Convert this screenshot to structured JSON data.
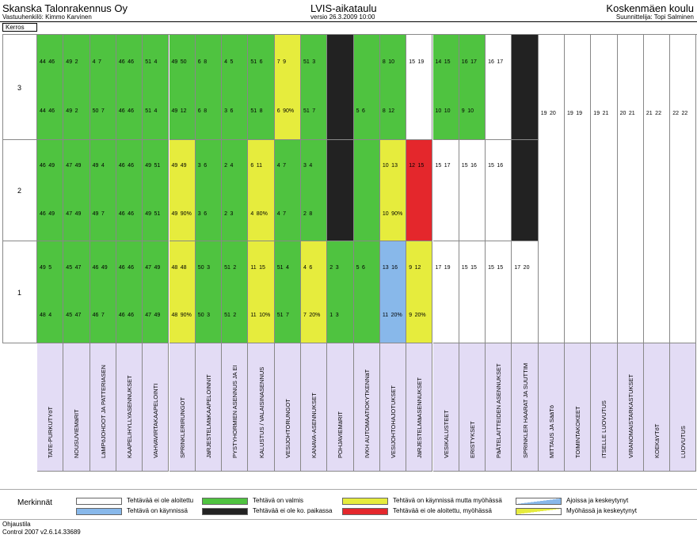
{
  "header": {
    "company": "Skanska Talonrakennus Oy",
    "responsible": "Vastuuhenkilö: Kimmo Karvinen",
    "doc_title": "LVIS-aikataulu",
    "version": "versio 26.3.2009 10:00",
    "project": "Koskenmäen koulu",
    "designer": "Suunnittelija: Topi Salminen",
    "floor_header": "Kerros"
  },
  "floors": [
    "3",
    "2",
    "1"
  ],
  "colors": {
    "white": "#ffffff",
    "green": "#4fc340",
    "yellow": "#e6ec3d",
    "black": "#222222",
    "red": "#e4272c",
    "blue": "#88b8ea",
    "task_bg": "#e3dcf5"
  },
  "tasks": [
    "TATE-PURKUTYöT",
    "NOUSUVIEMäRIT",
    "LäMPöJOHDOT JA PATTERIASEN",
    "KAAPELIHYLLYASENNUKSET",
    "VAHVAVIRTAKAAPELOINTI",
    "SPRINKLERIRUNGOT",
    "JäRJESTELMäKAAPELOINNIT",
    "PYSTYHORMIEN ASENNUS JA EI",
    "KALUSTUS / VALAISINASENNUS",
    "VESIJOHTORUNGOT",
    "KANAVA-ASENNUKSET",
    "POHJAVIEMäRIT",
    "IVKH AUTOMAATIOKYTKENNäT",
    "VESIJOHTOHAJOTUKSET",
    "JäRJESTELMäASENNUKSET",
    "VESIKALUSTEET",
    "ERISTYKSET",
    "PäÄTELAITTEIDEN ASENNUKSET",
    "SPRINKLER HAARAT JA SUUTTIM",
    "MITTAUS JA SääTö",
    "TOIMINTAKOKEET",
    "ITSELLE LUOVUTUS",
    "VIRANOMAISTARKASTUKSET",
    "KOEKäYTöT",
    "LUOVUTUS"
  ],
  "floor3": [
    {
      "c": "green",
      "t": "44  46",
      "b": "44  46"
    },
    {
      "c": "green",
      "t": "49   2",
      "b": "49   2"
    },
    {
      "c": "green",
      "t": "4    7",
      "b": "50   7"
    },
    {
      "c": "green",
      "t": "46  46",
      "b": "46  46"
    },
    {
      "c": "green",
      "t": "51   4",
      "b": "51   4"
    },
    {
      "c": "green",
      "t": "49  50",
      "b": "49  12"
    },
    {
      "c": "green",
      "t": "6    8",
      "b": "6    8"
    },
    {
      "c": "green",
      "t": "4    5",
      "b": "3    6"
    },
    {
      "c": "green",
      "t": "51   6",
      "b": "51   8"
    },
    {
      "c": "yellow",
      "t": "7    9",
      "b": "6   90%"
    },
    {
      "c": "green",
      "t": "51   3",
      "b": "51   7"
    },
    {
      "c": "black",
      "t": "",
      "b": ""
    },
    {
      "c": "green",
      "t": "",
      "b": "5    6"
    },
    {
      "c": "green",
      "t": "8   10",
      "b": "8   12"
    },
    {
      "c": "white",
      "t": "15  19",
      "b": ""
    },
    {
      "c": "green",
      "t": "14  15",
      "b": "10  10"
    },
    {
      "c": "green",
      "t": "16  17",
      "b": "9   10"
    },
    {
      "c": "white",
      "t": "16  17",
      "b": ""
    },
    {
      "c": "black",
      "t": "",
      "b": ""
    }
  ],
  "floor3_tail": [
    "19  20",
    "19  19",
    "19  21",
    "20  21",
    "21  22",
    "22  22"
  ],
  "floor2": [
    {
      "c": "green",
      "t": "46  49",
      "b": "46  49"
    },
    {
      "c": "green",
      "t": "47  49",
      "b": "47  49"
    },
    {
      "c": "green",
      "t": "49   4",
      "b": "49   7"
    },
    {
      "c": "green",
      "t": "46  46",
      "b": "46  46"
    },
    {
      "c": "green",
      "t": "49  51",
      "b": "49  51"
    },
    {
      "c": "yellow",
      "t": "49  49",
      "b": "49  90%"
    },
    {
      "c": "green",
      "t": "3    6",
      "b": "3    6"
    },
    {
      "c": "green",
      "t": "2    4",
      "b": "2    3"
    },
    {
      "c": "yellow",
      "t": "6   11",
      "b": "4   80%"
    },
    {
      "c": "green",
      "t": "4    7",
      "b": "4    7"
    },
    {
      "c": "green",
      "t": "3    4",
      "b": "2    8"
    },
    {
      "c": "black",
      "t": "",
      "b": ""
    },
    {
      "c": "green",
      "t": "",
      "b": ""
    },
    {
      "c": "yellow",
      "t": "10  13",
      "b": "10  90%"
    },
    {
      "c": "red",
      "t": "12  15",
      "b": ""
    },
    {
      "c": "white",
      "t": "15  17",
      "b": ""
    },
    {
      "c": "white",
      "t": "15  16",
      "b": ""
    },
    {
      "c": "white",
      "t": "15  16",
      "b": ""
    },
    {
      "c": "black",
      "t": "",
      "b": ""
    }
  ],
  "floor1": [
    {
      "c": "green",
      "t": "49   5",
      "b": "48   4"
    },
    {
      "c": "green",
      "t": "45  47",
      "b": "45  47"
    },
    {
      "c": "green",
      "t": "46  49",
      "b": "46   7"
    },
    {
      "c": "green",
      "t": "46  46",
      "b": "46  46"
    },
    {
      "c": "green",
      "t": "47  49",
      "b": "47  49"
    },
    {
      "c": "yellow",
      "t": "48  48",
      "b": "48  90%"
    },
    {
      "c": "green",
      "t": "50   3",
      "b": "50   3"
    },
    {
      "c": "green",
      "t": "51   2",
      "b": "51   2"
    },
    {
      "c": "yellow",
      "t": "11  15",
      "b": "11  10%"
    },
    {
      "c": "green",
      "t": "51   4",
      "b": "51   7"
    },
    {
      "c": "yellow",
      "t": "4    6",
      "b": "7   20%"
    },
    {
      "c": "green",
      "t": "2    3",
      "b": "1    3"
    },
    {
      "c": "green",
      "t": "5    6",
      "b": ""
    },
    {
      "c": "blue",
      "t": "13  16",
      "b": "11  20%"
    },
    {
      "c": "yellow",
      "t": "9   12",
      "b": "9   20%"
    },
    {
      "c": "white",
      "t": "17  19",
      "b": ""
    },
    {
      "c": "white",
      "t": "15  15",
      "b": ""
    },
    {
      "c": "white",
      "t": "15  15",
      "b": ""
    },
    {
      "c": "white",
      "t": "17  20",
      "b": ""
    }
  ],
  "legend": {
    "title": "Merkinnät",
    "items": [
      {
        "label": "Tehtävää ei ole aloitettu",
        "color": "#ffffff"
      },
      {
        "label": "Tehtävä on käynnissä",
        "color": "#88b8ea"
      },
      {
        "label": "Tehtävä on valmis",
        "color": "#4fc340"
      },
      {
        "label": "Tehtävää ei ole ko. paikassa",
        "color": "#222222"
      },
      {
        "label": "Tehtävä on käynnissä mutta myöhässä",
        "color": "#e6ec3d"
      },
      {
        "label": "Tehtävää ei ole aloitettu, myöhässä",
        "color": "#e4272c"
      },
      {
        "label": "Ajoissa ja keskeytynyt",
        "color": "#88b8ea"
      },
      {
        "label": "Myöhässä ja keskeytynyt",
        "color": "#e6ec3d"
      }
    ]
  },
  "footer": {
    "line1": "Ohjaustila",
    "line2": "Control 2007 v2.6.14.33689"
  }
}
